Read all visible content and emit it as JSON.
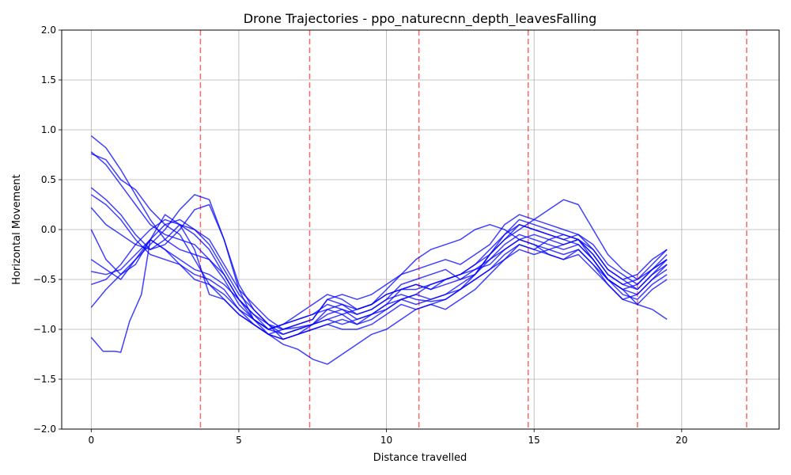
{
  "chart_data": {
    "type": "line",
    "title": "Drone Trajectories - ppo_naturecnn_depth_leavesFalling",
    "xlabel": "Distance travelled",
    "ylabel": "Horizontal Movement",
    "xlim": [
      -1.0,
      23.3
    ],
    "ylim": [
      -2.0,
      2.0
    ],
    "xticks": [
      0,
      5,
      10,
      15,
      20
    ],
    "xtick_labels": [
      "0",
      "5",
      "10",
      "15",
      "20"
    ],
    "yticks": [
      -2.0,
      -1.5,
      -1.0,
      -0.5,
      0.0,
      0.5,
      1.0,
      1.5,
      2.0
    ],
    "ytick_labels": [
      "−2.0",
      "−1.5",
      "−1.0",
      "−0.5",
      "0.0",
      "0.5",
      "1.0",
      "1.5",
      "2.0"
    ],
    "grid": true,
    "line_color": "#0000ff",
    "vline_color": "#ff0000",
    "vlines": [
      3.7,
      7.4,
      11.1,
      14.8,
      18.5,
      22.2
    ],
    "series": [
      {
        "x": [
          0,
          0.5,
          1.0,
          1.5,
          2.0,
          2.5,
          3.0,
          3.5,
          4.0,
          4.5,
          5.0,
          5.5,
          6.0,
          6.5,
          7.0,
          7.5,
          8.0,
          8.5,
          9.0,
          9.5,
          10.0,
          10.5,
          11.0,
          11.5,
          12.0,
          12.5,
          13.0,
          13.5,
          14.0,
          14.5,
          15.0,
          15.5,
          16.0,
          16.5,
          17.0,
          17.5,
          18.0,
          18.5,
          19.0,
          19.5
        ],
        "y": [
          0.94,
          0.82,
          0.6,
          0.35,
          0.1,
          -0.1,
          -0.2,
          -0.25,
          -0.3,
          -0.45,
          -0.7,
          -0.85,
          -0.95,
          -1.0,
          -0.98,
          -0.95,
          -0.85,
          -0.8,
          -0.85,
          -0.8,
          -0.7,
          -0.65,
          -0.7,
          -0.72,
          -0.7,
          -0.6,
          -0.45,
          -0.3,
          -0.15,
          -0.05,
          -0.1,
          -0.15,
          -0.2,
          -0.15,
          -0.3,
          -0.5,
          -0.6,
          -0.55,
          -0.4,
          -0.3
        ]
      },
      {
        "x": [
          0,
          0.5,
          1.0,
          1.5,
          2.0,
          2.5,
          3.0,
          3.5,
          4.0,
          4.5,
          5.0,
          5.5,
          6.0,
          6.5,
          7.0,
          7.5,
          8.0,
          8.5,
          9.0,
          9.5,
          10.0,
          10.5,
          11.0,
          11.5,
          12.0,
          12.5,
          13.0,
          13.5,
          14.0,
          14.5,
          15.0,
          15.5,
          16.0,
          16.5,
          17.0,
          17.5,
          18.0,
          18.5,
          19.0,
          19.5
        ],
        "y": [
          0.78,
          0.65,
          0.45,
          0.25,
          0.05,
          -0.05,
          -0.1,
          -0.15,
          -0.3,
          -0.5,
          -0.75,
          -0.9,
          -1.0,
          -0.95,
          -0.9,
          -0.85,
          -0.75,
          -0.8,
          -0.9,
          -0.85,
          -0.75,
          -0.6,
          -0.55,
          -0.6,
          -0.55,
          -0.5,
          -0.4,
          -0.3,
          -0.2,
          -0.1,
          -0.05,
          -0.1,
          -0.15,
          -0.1,
          -0.25,
          -0.45,
          -0.55,
          -0.5,
          -0.35,
          -0.2
        ]
      },
      {
        "x": [
          0,
          0.5,
          1.0,
          1.5,
          2.0,
          2.5,
          3.0,
          3.5,
          4.0,
          4.5,
          5.0,
          5.5,
          6.0,
          6.5,
          7.0,
          7.5,
          8.0,
          8.5,
          9.0,
          9.5,
          10.0,
          10.5,
          11.0,
          11.5,
          12.0,
          12.5,
          13.0,
          13.5,
          14.0,
          14.5,
          15.0,
          15.5,
          16.0,
          16.5,
          17.0,
          17.5,
          18.0,
          18.5,
          19.0,
          19.5
        ],
        "y": [
          0.42,
          0.3,
          0.15,
          -0.05,
          -0.2,
          -0.15,
          0.0,
          0.2,
          0.25,
          -0.1,
          -0.55,
          -0.8,
          -0.95,
          -1.05,
          -1.0,
          -0.95,
          -0.9,
          -0.85,
          -0.95,
          -0.9,
          -0.8,
          -0.7,
          -0.65,
          -0.7,
          -0.65,
          -0.55,
          -0.45,
          -0.25,
          -0.1,
          0.05,
          0.0,
          -0.05,
          -0.1,
          -0.05,
          -0.2,
          -0.4,
          -0.5,
          -0.6,
          -0.45,
          -0.3
        ]
      },
      {
        "x": [
          0,
          0.5,
          1.0,
          1.5,
          2.0,
          2.5,
          3.0,
          3.5,
          4.0,
          4.5,
          5.0,
          5.5,
          6.0,
          6.5,
          7.0,
          7.5,
          8.0,
          8.5,
          9.0,
          9.5,
          10.0,
          10.5,
          11.0,
          11.5,
          12.0,
          12.5,
          13.0,
          13.5,
          14.0,
          14.5,
          15.0,
          15.5,
          16.0,
          16.5,
          17.0,
          17.5,
          18.0,
          18.5,
          19.0,
          19.5
        ],
        "y": [
          0.35,
          0.25,
          0.1,
          -0.1,
          -0.25,
          -0.3,
          -0.35,
          -0.45,
          -0.5,
          -0.6,
          -0.8,
          -0.95,
          -1.05,
          -1.1,
          -1.05,
          -1.0,
          -0.95,
          -1.0,
          -1.0,
          -0.95,
          -0.85,
          -0.75,
          -0.8,
          -0.75,
          -0.7,
          -0.6,
          -0.5,
          -0.4,
          -0.25,
          -0.15,
          -0.2,
          -0.25,
          -0.3,
          -0.25,
          -0.4,
          -0.55,
          -0.7,
          -0.65,
          -0.5,
          -0.35
        ]
      },
      {
        "x": [
          0,
          0.5,
          1.0,
          1.5,
          2.0,
          2.5,
          3.0,
          3.5,
          4.0,
          4.5,
          5.0,
          5.5,
          6.0,
          6.5,
          7.0,
          7.5,
          8.0,
          8.5,
          9.0,
          9.5,
          10.0,
          10.5,
          11.0,
          11.5,
          12.0,
          12.5,
          13.0,
          13.5,
          14.0,
          14.5,
          15.0,
          15.5,
          16.0,
          16.5,
          17.0,
          17.5,
          18.0,
          18.5,
          19.0,
          19.5
        ],
        "y": [
          0.22,
          0.05,
          -0.05,
          -0.15,
          -0.2,
          -0.1,
          0.05,
          0.0,
          -0.1,
          -0.35,
          -0.6,
          -0.75,
          -0.9,
          -1.0,
          -0.95,
          -0.9,
          -0.7,
          -0.65,
          -0.7,
          -0.65,
          -0.55,
          -0.45,
          -0.4,
          -0.35,
          -0.3,
          -0.35,
          -0.25,
          -0.15,
          0.05,
          0.15,
          0.1,
          0.05,
          0.0,
          -0.05,
          -0.15,
          -0.35,
          -0.45,
          -0.55,
          -0.4,
          -0.25
        ]
      },
      {
        "x": [
          0,
          0.5,
          1.0,
          1.5,
          2.0,
          2.5,
          3.0,
          3.5,
          4.0,
          4.5,
          5.0,
          5.5,
          6.0,
          6.5,
          7.0,
          7.5,
          8.0,
          8.5,
          9.0,
          9.5,
          10.0,
          10.5,
          11.0,
          11.5,
          12.0,
          12.5,
          13.0,
          13.5,
          14.0,
          14.5,
          15.0,
          15.5,
          16.0,
          16.5,
          17.0,
          17.5,
          18.0,
          18.5,
          19.0,
          19.5
        ],
        "y": [
          0.0,
          -0.3,
          -0.45,
          -0.35,
          -0.1,
          0.05,
          0.1,
          0.0,
          -0.15,
          -0.4,
          -0.65,
          -0.8,
          -0.95,
          -1.1,
          -1.05,
          -0.95,
          -0.8,
          -0.75,
          -0.8,
          -0.75,
          -0.65,
          -0.6,
          -0.55,
          -0.6,
          -0.5,
          -0.45,
          -0.35,
          -0.2,
          -0.05,
          0.05,
          0.0,
          -0.05,
          -0.1,
          -0.15,
          -0.3,
          -0.5,
          -0.6,
          -0.65,
          -0.5,
          -0.4
        ]
      },
      {
        "x": [
          0,
          0.5,
          1.0,
          1.5,
          2.0,
          2.5,
          3.0,
          3.5,
          4.0,
          4.5,
          5.0,
          5.5,
          6.0,
          6.5,
          7.0,
          7.5,
          8.0,
          8.5,
          9.0,
          9.5,
          10.0,
          10.5,
          11.0,
          11.5,
          12.0,
          12.5,
          13.0,
          13.5,
          14.0,
          14.5,
          15.0,
          15.5,
          16.0,
          16.5,
          17.0,
          17.5,
          18.0,
          18.5,
          19.0,
          19.5
        ],
        "y": [
          -0.3,
          -0.4,
          -0.5,
          -0.3,
          -0.1,
          -0.2,
          -0.3,
          -0.4,
          -0.45,
          -0.55,
          -0.7,
          -0.9,
          -1.0,
          -1.05,
          -1.0,
          -0.95,
          -0.9,
          -0.95,
          -0.9,
          -0.85,
          -0.75,
          -0.7,
          -0.75,
          -0.7,
          -0.65,
          -0.6,
          -0.5,
          -0.4,
          -0.3,
          -0.2,
          -0.25,
          -0.2,
          -0.25,
          -0.2,
          -0.35,
          -0.5,
          -0.65,
          -0.7,
          -0.55,
          -0.45
        ]
      },
      {
        "x": [
          0,
          0.5,
          1.0,
          1.5,
          2.0,
          2.5,
          3.0,
          3.5,
          4.0,
          4.5,
          5.0,
          5.5,
          6.0,
          6.5,
          7.0,
          7.5,
          8.0,
          8.5,
          9.0,
          9.5,
          10.0,
          10.5,
          11.0,
          11.5,
          12.0,
          12.5,
          13.0,
          13.5,
          14.0,
          14.5,
          15.0,
          15.5,
          16.0,
          16.5,
          17.0,
          17.5,
          18.0,
          18.5,
          19.0,
          19.5
        ],
        "y": [
          -0.55,
          -0.5,
          -0.35,
          -0.15,
          0.0,
          0.1,
          0.05,
          -0.05,
          -0.2,
          -0.45,
          -0.7,
          -0.85,
          -1.0,
          -0.95,
          -0.9,
          -0.85,
          -0.8,
          -0.85,
          -0.8,
          -0.75,
          -0.65,
          -0.6,
          -0.6,
          -0.55,
          -0.5,
          -0.45,
          -0.4,
          -0.35,
          -0.2,
          -0.1,
          -0.15,
          -0.2,
          -0.15,
          -0.1,
          -0.25,
          -0.45,
          -0.55,
          -0.6,
          -0.45,
          -0.35
        ]
      },
      {
        "x": [
          0,
          0.5,
          1.0,
          1.5,
          2.0,
          2.5,
          3.0,
          3.5,
          4.0,
          4.5,
          5.0,
          5.5,
          6.0,
          6.5,
          7.0,
          7.5,
          8.0,
          8.5,
          9.0,
          9.5,
          10.0,
          10.5,
          11.0,
          11.5,
          12.0,
          12.5,
          13.0,
          13.5,
          14.0,
          14.5,
          15.0,
          15.5,
          16.0,
          16.5,
          17.0,
          17.5,
          18.0,
          18.5,
          19.0,
          19.5
        ],
        "y": [
          -0.78,
          -0.6,
          -0.45,
          -0.3,
          -0.15,
          0.0,
          0.2,
          0.35,
          0.3,
          -0.1,
          -0.6,
          -0.9,
          -1.05,
          -1.0,
          -0.95,
          -0.9,
          -0.7,
          -0.75,
          -0.85,
          -0.8,
          -0.7,
          -0.55,
          -0.5,
          -0.45,
          -0.4,
          -0.5,
          -0.45,
          -0.25,
          -0.05,
          0.1,
          0.05,
          0.0,
          -0.05,
          -0.1,
          -0.2,
          -0.4,
          -0.5,
          -0.45,
          -0.3,
          -0.2
        ]
      },
      {
        "x": [
          0,
          0.4,
          0.8,
          1.0,
          1.3,
          1.7,
          2.0,
          2.5,
          3.0,
          3.5,
          4.0,
          4.5,
          5.0,
          5.5,
          6.0,
          6.5,
          7.0,
          7.5,
          8.0,
          8.5,
          9.0,
          9.5,
          10.0,
          10.5,
          11.0,
          11.5,
          12.0,
          12.5,
          13.0,
          13.5,
          14.0,
          14.5,
          15.0,
          15.5,
          16.0,
          16.5,
          17.0,
          17.5,
          18.0,
          18.5,
          19.0,
          19.5
        ],
        "y": [
          -1.08,
          -1.22,
          -1.22,
          -1.23,
          -0.92,
          -0.65,
          -0.1,
          0.15,
          0.05,
          -0.2,
          -0.65,
          -0.7,
          -0.85,
          -0.95,
          -1.05,
          -1.15,
          -1.2,
          -1.3,
          -1.35,
          -1.25,
          -1.15,
          -1.05,
          -1.0,
          -0.9,
          -0.8,
          -0.75,
          -0.8,
          -0.7,
          -0.6,
          -0.45,
          -0.3,
          -0.15,
          -0.2,
          -0.1,
          -0.05,
          -0.1,
          -0.3,
          -0.5,
          -0.6,
          -0.75,
          -0.8,
          -0.9
        ]
      },
      {
        "x": [
          0,
          0.5,
          1.0,
          1.5,
          2.0,
          2.5,
          3.0,
          3.5,
          4.0,
          4.5,
          5.0,
          5.5,
          6.0,
          6.5,
          7.0,
          7.5,
          8.0,
          8.5,
          9.0,
          9.5,
          10.0,
          10.5,
          11.0,
          11.5,
          12.0,
          12.5,
          13.0,
          13.5,
          14.0,
          14.5,
          15.0,
          15.5,
          16.0,
          16.5,
          17.0,
          17.5,
          18.0,
          18.5,
          19.0,
          19.5
        ],
        "y": [
          0.76,
          0.7,
          0.5,
          0.4,
          0.2,
          0.05,
          -0.05,
          -0.3,
          -0.55,
          -0.7,
          -0.85,
          -0.95,
          -1.05,
          -1.1,
          -1.05,
          -1.0,
          -0.95,
          -0.9,
          -0.95,
          -0.85,
          -0.8,
          -0.7,
          -0.65,
          -0.55,
          -0.5,
          -0.45,
          -0.35,
          -0.25,
          -0.1,
          0.0,
          0.1,
          0.2,
          0.3,
          0.25,
          0.0,
          -0.25,
          -0.4,
          -0.5,
          -0.4,
          -0.3
        ]
      },
      {
        "x": [
          0,
          0.5,
          1.0,
          1.5,
          2.0,
          2.5,
          3.0,
          3.5,
          4.0,
          4.5,
          5.0,
          5.5,
          6.0,
          6.5,
          7.0,
          7.5,
          8.0,
          8.5,
          9.0,
          9.5,
          10.0,
          10.5,
          11.0,
          11.5,
          12.0,
          12.5,
          13.0,
          13.5,
          14.0,
          14.5,
          15.0,
          15.5,
          16.0,
          16.5,
          17.0,
          17.5,
          18.0,
          18.5,
          19.0,
          19.5
        ],
        "y": [
          -0.42,
          -0.45,
          -0.4,
          -0.25,
          -0.1,
          -0.2,
          -0.35,
          -0.5,
          -0.55,
          -0.65,
          -0.8,
          -0.9,
          -1.0,
          -0.95,
          -0.85,
          -0.75,
          -0.65,
          -0.7,
          -0.8,
          -0.75,
          -0.6,
          -0.45,
          -0.3,
          -0.2,
          -0.15,
          -0.1,
          0.0,
          0.05,
          0.0,
          -0.1,
          -0.15,
          -0.25,
          -0.3,
          -0.2,
          -0.35,
          -0.55,
          -0.7,
          -0.75,
          -0.6,
          -0.5
        ]
      }
    ]
  }
}
